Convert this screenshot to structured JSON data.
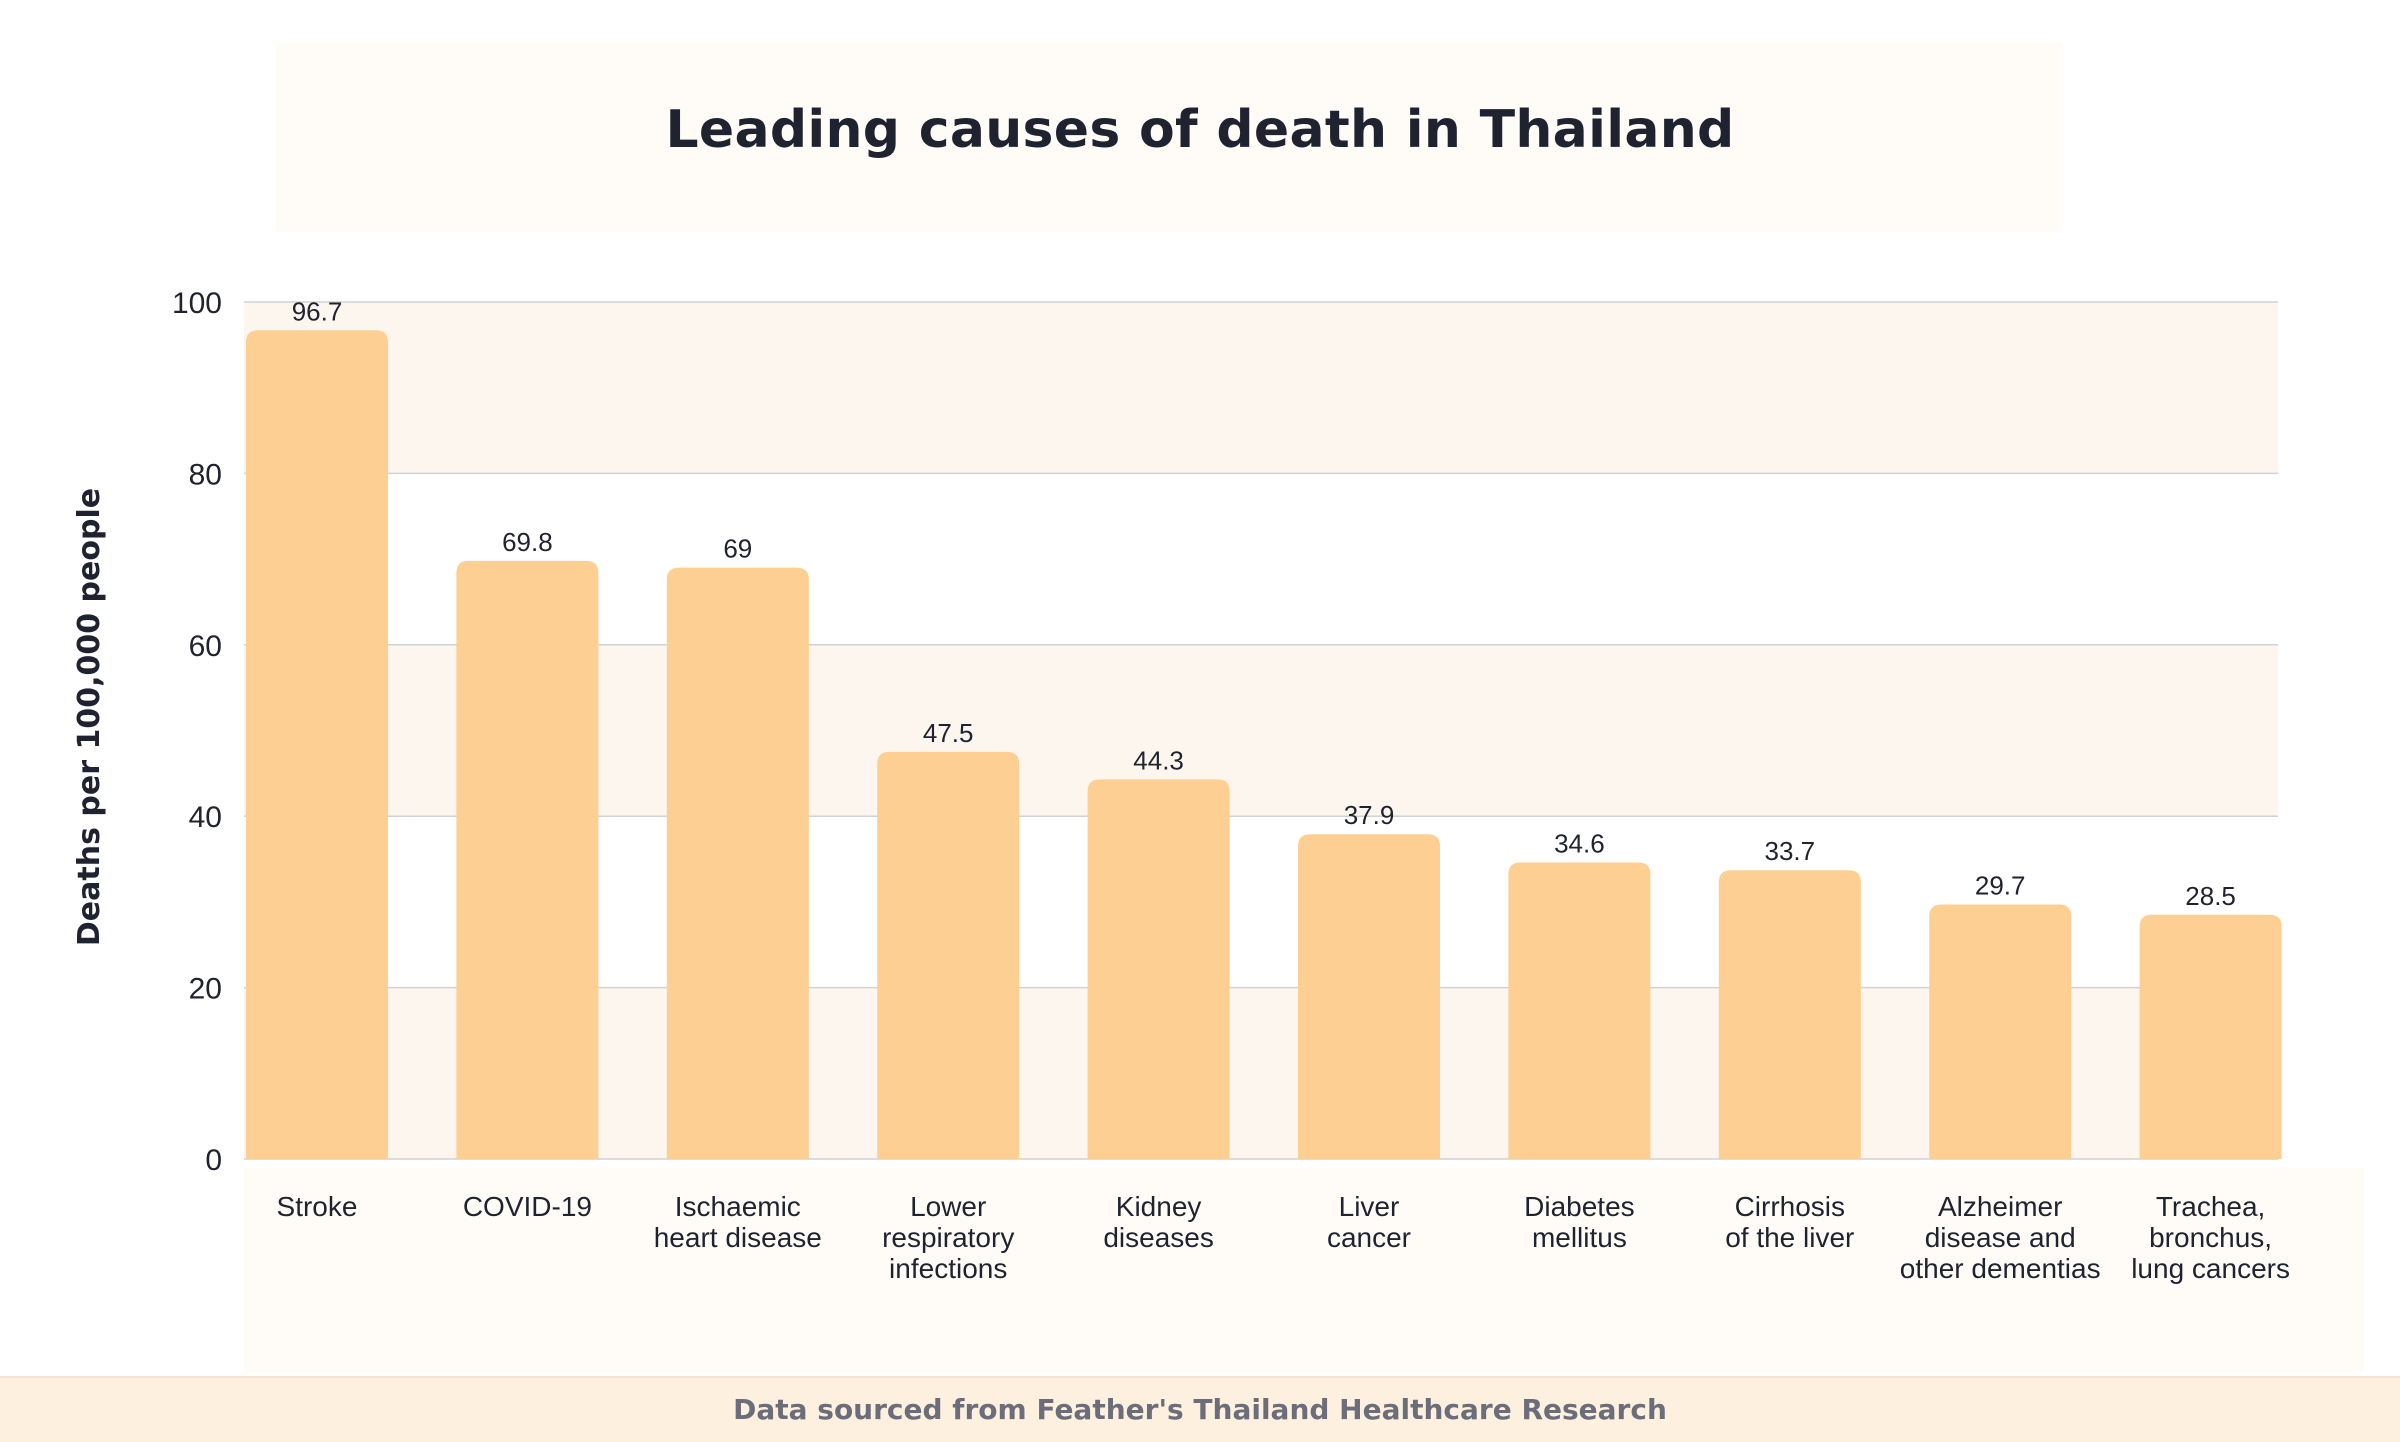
{
  "chart_data": {
    "type": "bar",
    "title": "Leading causes of death in Thailand",
    "ylabel": "Deaths per 100,000 people",
    "xlabel": "",
    "ylim": [
      0,
      100
    ],
    "yticks": [
      0,
      20,
      40,
      60,
      80,
      100
    ],
    "grid": true,
    "categories": [
      [
        "Stroke"
      ],
      [
        "COVID-19"
      ],
      [
        "Ischaemic",
        "heart disease"
      ],
      [
        "Lower",
        "respiratory",
        "infections"
      ],
      [
        "Kidney",
        "diseases"
      ],
      [
        "Liver",
        "cancer"
      ],
      [
        "Diabetes",
        "mellitus"
      ],
      [
        "Cirrhosis",
        "of the liver"
      ],
      [
        "Alzheimer",
        "disease and",
        "other dementias"
      ],
      [
        "Trachea,",
        "bronchus,",
        "lung cancers"
      ]
    ],
    "values": [
      96.7,
      69.8,
      69,
      47.5,
      44.3,
      37.9,
      34.6,
      33.7,
      29.7,
      28.5
    ],
    "value_labels": [
      "96.7",
      "69.8",
      "69",
      "47.5",
      "44.3",
      "37.9",
      "34.6",
      "33.7",
      "29.7",
      "28.5"
    ]
  },
  "footer": {
    "source": "Data sourced from Feather's Thailand Healthcare Research"
  },
  "colors": {
    "bar": "#fdcf92",
    "band": "#fcf6ef",
    "gridline": "#d2d2d2",
    "text": "#1f2330"
  }
}
